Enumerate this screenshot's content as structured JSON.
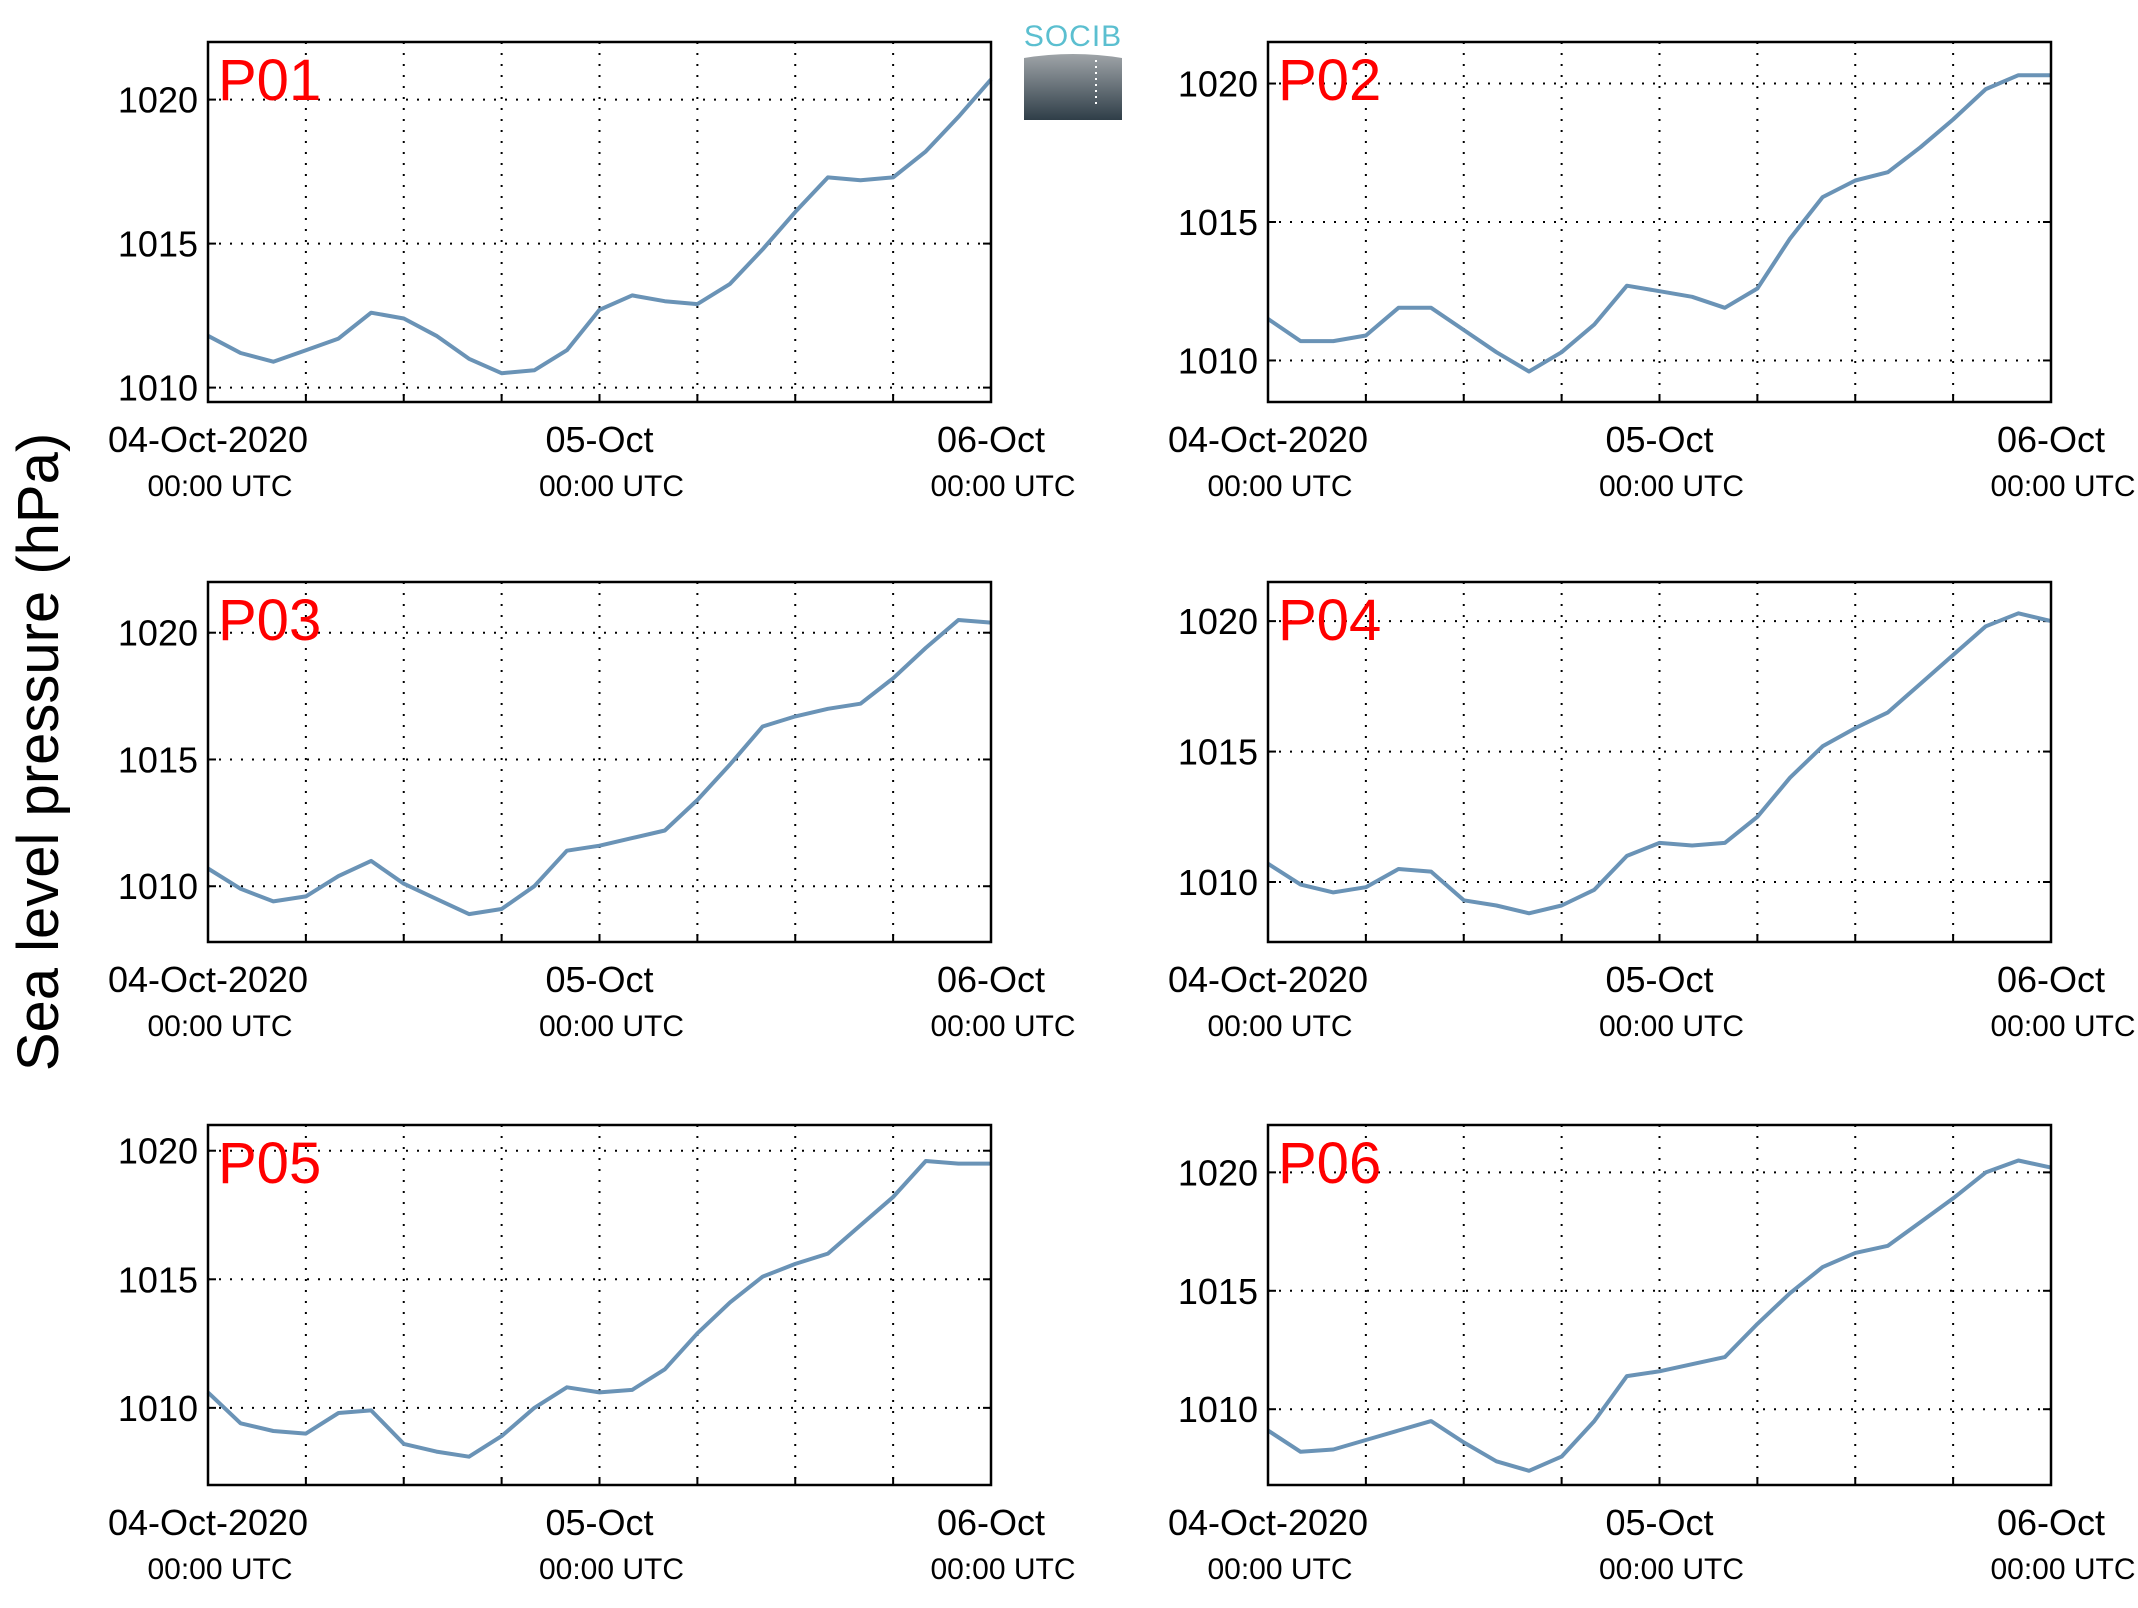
{
  "figure": {
    "ylabel": "Sea level pressure (hPa)",
    "logo_text": "SOCIB",
    "colors": {
      "line": "#6a93b6",
      "panel_label": "#ff0000",
      "logo_text": "#5bbfd0",
      "logo_top": "#9fa4a8",
      "logo_bottom": "#2f3e48"
    }
  },
  "chart_data": [
    {
      "type": "line",
      "title": "P01",
      "xlim": [
        "2020-10-04T00:00",
        "2020-10-06T00:00"
      ],
      "ylim": [
        1009.5,
        1022
      ],
      "yticks": [
        1010,
        1015,
        1020
      ],
      "xticks": [
        {
          "label": "04-Oct-2020",
          "sub": "00:00 UTC"
        },
        {
          "label": "05-Oct",
          "sub": "00:00 UTC"
        },
        {
          "label": "06-Oct",
          "sub": "00:00 UTC"
        }
      ],
      "grid": true,
      "series": [
        {
          "x": [
            "2020-10-04T00:00",
            "2020-10-04T02:00",
            "2020-10-04T04:00",
            "2020-10-04T06:00",
            "2020-10-04T08:00",
            "2020-10-04T10:00",
            "2020-10-04T12:00",
            "2020-10-04T14:00",
            "2020-10-04T16:00",
            "2020-10-04T18:00",
            "2020-10-04T20:00",
            "2020-10-04T22:00",
            "2020-10-05T00:00",
            "2020-10-05T02:00",
            "2020-10-05T04:00",
            "2020-10-05T06:00",
            "2020-10-05T08:00",
            "2020-10-05T10:00",
            "2020-10-05T12:00",
            "2020-10-05T14:00",
            "2020-10-05T16:00",
            "2020-10-05T18:00",
            "2020-10-05T20:00",
            "2020-10-05T22:00",
            "2020-10-06T00:00"
          ],
          "y": [
            1011.8,
            1011.2,
            1010.9,
            1011.3,
            1011.7,
            1012.6,
            1012.4,
            1011.8,
            1011.0,
            1010.5,
            1010.6,
            1011.3,
            1012.7,
            1013.2,
            1013.0,
            1012.9,
            1013.6,
            1014.8,
            1016.1,
            1017.3,
            1017.2,
            1017.3,
            1018.2,
            1019.4,
            1020.7
          ]
        }
      ]
    },
    {
      "type": "line",
      "title": "P02",
      "xlim": [
        "2020-10-04T00:00",
        "2020-10-06T00:00"
      ],
      "ylim": [
        1008.5,
        1021.5
      ],
      "yticks": [
        1010,
        1015,
        1020
      ],
      "xticks": [
        {
          "label": "04-Oct-2020",
          "sub": "00:00 UTC"
        },
        {
          "label": "05-Oct",
          "sub": "00:00 UTC"
        },
        {
          "label": "06-Oct",
          "sub": "00:00 UTC"
        }
      ],
      "grid": true,
      "series": [
        {
          "x": [
            "2020-10-04T00:00",
            "2020-10-04T02:00",
            "2020-10-04T04:00",
            "2020-10-04T06:00",
            "2020-10-04T08:00",
            "2020-10-04T10:00",
            "2020-10-04T12:00",
            "2020-10-04T14:00",
            "2020-10-04T16:00",
            "2020-10-04T18:00",
            "2020-10-04T20:00",
            "2020-10-04T22:00",
            "2020-10-05T00:00",
            "2020-10-05T02:00",
            "2020-10-05T04:00",
            "2020-10-05T06:00",
            "2020-10-05T08:00",
            "2020-10-05T10:00",
            "2020-10-05T12:00",
            "2020-10-05T14:00",
            "2020-10-05T16:00",
            "2020-10-05T18:00",
            "2020-10-05T20:00",
            "2020-10-05T22:00",
            "2020-10-06T00:00"
          ],
          "y": [
            1011.5,
            1010.7,
            1010.7,
            1010.9,
            1011.9,
            1011.9,
            1011.1,
            1010.3,
            1009.6,
            1010.3,
            1011.3,
            1012.7,
            1012.5,
            1012.3,
            1011.9,
            1012.6,
            1014.4,
            1015.9,
            1016.5,
            1016.8,
            1017.7,
            1018.7,
            1019.8,
            1020.3,
            1020.3
          ]
        }
      ]
    },
    {
      "type": "line",
      "title": "P03",
      "xlim": [
        "2020-10-04T00:00",
        "2020-10-06T00:00"
      ],
      "ylim": [
        1007.8,
        1022
      ],
      "yticks": [
        1010,
        1015,
        1020
      ],
      "xticks": [
        {
          "label": "04-Oct-2020",
          "sub": "00:00 UTC"
        },
        {
          "label": "05-Oct",
          "sub": "00:00 UTC"
        },
        {
          "label": "06-Oct",
          "sub": "00:00 UTC"
        }
      ],
      "grid": true,
      "series": [
        {
          "x": [
            "2020-10-04T00:00",
            "2020-10-04T02:00",
            "2020-10-04T04:00",
            "2020-10-04T06:00",
            "2020-10-04T08:00",
            "2020-10-04T10:00",
            "2020-10-04T12:00",
            "2020-10-04T14:00",
            "2020-10-04T16:00",
            "2020-10-04T18:00",
            "2020-10-04T20:00",
            "2020-10-04T22:00",
            "2020-10-05T00:00",
            "2020-10-05T02:00",
            "2020-10-05T04:00",
            "2020-10-05T06:00",
            "2020-10-05T08:00",
            "2020-10-05T10:00",
            "2020-10-05T12:00",
            "2020-10-05T14:00",
            "2020-10-05T16:00",
            "2020-10-05T18:00",
            "2020-10-05T20:00",
            "2020-10-05T22:00",
            "2020-10-06T00:00"
          ],
          "y": [
            1010.7,
            1009.9,
            1009.4,
            1009.6,
            1010.4,
            1011.0,
            1010.1,
            1009.5,
            1008.9,
            1009.1,
            1010.0,
            1011.4,
            1011.6,
            1011.9,
            1012.2,
            1013.4,
            1014.8,
            1016.3,
            1016.7,
            1017.0,
            1017.2,
            1018.2,
            1019.4,
            1020.5,
            1020.4
          ]
        }
      ]
    },
    {
      "type": "line",
      "title": "P04",
      "xlim": [
        "2020-10-04T00:00",
        "2020-10-06T00:00"
      ],
      "ylim": [
        1007.7,
        1021.5
      ],
      "yticks": [
        1010,
        1015,
        1020
      ],
      "xticks": [
        {
          "label": "04-Oct-2020",
          "sub": "00:00 UTC"
        },
        {
          "label": "05-Oct",
          "sub": "00:00 UTC"
        },
        {
          "label": "06-Oct",
          "sub": "00:00 UTC"
        }
      ],
      "grid": true,
      "series": [
        {
          "x": [
            "2020-10-04T00:00",
            "2020-10-04T02:00",
            "2020-10-04T04:00",
            "2020-10-04T06:00",
            "2020-10-04T08:00",
            "2020-10-04T10:00",
            "2020-10-04T12:00",
            "2020-10-04T14:00",
            "2020-10-04T16:00",
            "2020-10-04T18:00",
            "2020-10-04T20:00",
            "2020-10-04T22:00",
            "2020-10-05T00:00",
            "2020-10-05T02:00",
            "2020-10-05T04:00",
            "2020-10-05T06:00",
            "2020-10-05T08:00",
            "2020-10-05T10:00",
            "2020-10-05T12:00",
            "2020-10-05T14:00",
            "2020-10-05T16:00",
            "2020-10-05T18:00",
            "2020-10-05T20:00",
            "2020-10-05T22:00",
            "2020-10-06T00:00"
          ],
          "y": [
            1010.7,
            1009.9,
            1009.6,
            1009.8,
            1010.5,
            1010.4,
            1009.3,
            1009.1,
            1008.8,
            1009.1,
            1009.7,
            1011.0,
            1011.5,
            1011.4,
            1011.5,
            1012.5,
            1014.0,
            1015.2,
            1015.9,
            1016.5,
            1017.6,
            1018.7,
            1019.8,
            1020.3,
            1020.0
          ]
        }
      ]
    },
    {
      "type": "line",
      "title": "P05",
      "xlim": [
        "2020-10-04T00:00",
        "2020-10-06T00:00"
      ],
      "ylim": [
        1007.0,
        1021.0
      ],
      "yticks": [
        1010,
        1015,
        1020
      ],
      "xticks": [
        {
          "label": "04-Oct-2020",
          "sub": "00:00 UTC"
        },
        {
          "label": "05-Oct",
          "sub": "00:00 UTC"
        },
        {
          "label": "06-Oct",
          "sub": "00:00 UTC"
        }
      ],
      "grid": true,
      "series": [
        {
          "x": [
            "2020-10-04T00:00",
            "2020-10-04T02:00",
            "2020-10-04T04:00",
            "2020-10-04T06:00",
            "2020-10-04T08:00",
            "2020-10-04T10:00",
            "2020-10-04T12:00",
            "2020-10-04T14:00",
            "2020-10-04T16:00",
            "2020-10-04T18:00",
            "2020-10-04T20:00",
            "2020-10-04T22:00",
            "2020-10-05T00:00",
            "2020-10-05T02:00",
            "2020-10-05T04:00",
            "2020-10-05T06:00",
            "2020-10-05T08:00",
            "2020-10-05T10:00",
            "2020-10-05T12:00",
            "2020-10-05T14:00",
            "2020-10-05T16:00",
            "2020-10-05T18:00",
            "2020-10-05T20:00",
            "2020-10-05T22:00",
            "2020-10-06T00:00"
          ],
          "y": [
            1010.6,
            1009.4,
            1009.1,
            1009.0,
            1009.8,
            1009.9,
            1008.6,
            1008.3,
            1008.1,
            1008.9,
            1010.0,
            1010.8,
            1010.6,
            1010.7,
            1011.5,
            1012.9,
            1014.1,
            1015.1,
            1015.6,
            1016.0,
            1017.1,
            1018.2,
            1019.6,
            1019.5,
            1019.5
          ]
        }
      ]
    },
    {
      "type": "line",
      "title": "P06",
      "xlim": [
        "2020-10-04T00:00",
        "2020-10-06T00:00"
      ],
      "ylim": [
        1006.8,
        1022
      ],
      "yticks": [
        1010,
        1015,
        1020
      ],
      "xticks": [
        {
          "label": "04-Oct-2020",
          "sub": "00:00 UTC"
        },
        {
          "label": "05-Oct",
          "sub": "00:00 UTC"
        },
        {
          "label": "06-Oct",
          "sub": "00:00 UTC"
        }
      ],
      "grid": true,
      "series": [
        {
          "x": [
            "2020-10-04T00:00",
            "2020-10-04T02:00",
            "2020-10-04T04:00",
            "2020-10-04T06:00",
            "2020-10-04T08:00",
            "2020-10-04T10:00",
            "2020-10-04T12:00",
            "2020-10-04T14:00",
            "2020-10-04T16:00",
            "2020-10-04T18:00",
            "2020-10-04T20:00",
            "2020-10-04T22:00",
            "2020-10-05T00:00",
            "2020-10-05T02:00",
            "2020-10-05T04:00",
            "2020-10-05T06:00",
            "2020-10-05T08:00",
            "2020-10-05T10:00",
            "2020-10-05T12:00",
            "2020-10-05T14:00",
            "2020-10-05T16:00",
            "2020-10-05T18:00",
            "2020-10-05T20:00",
            "2020-10-05T22:00",
            "2020-10-06T00:00"
          ],
          "y": [
            1009.1,
            1008.2,
            1008.3,
            1008.7,
            1009.1,
            1009.5,
            1008.6,
            1007.8,
            1007.4,
            1008.0,
            1009.5,
            1011.4,
            1011.6,
            1011.9,
            1012.2,
            1013.6,
            1014.9,
            1016.0,
            1016.6,
            1016.9,
            1017.9,
            1018.9,
            1020.0,
            1020.5,
            1020.2
          ]
        }
      ]
    }
  ]
}
